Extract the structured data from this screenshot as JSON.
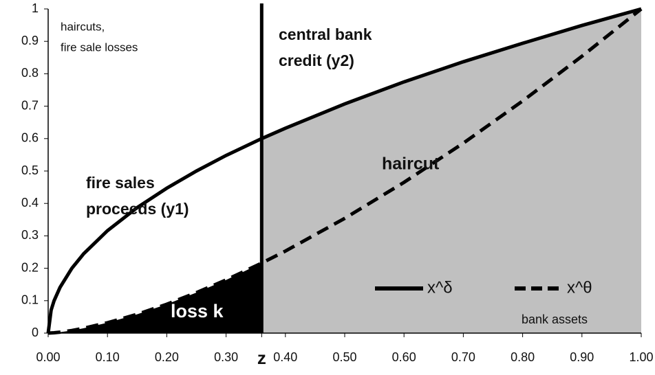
{
  "chart_data": {
    "type": "line",
    "x": [
      0,
      0.005,
      0.01,
      0.02,
      0.04,
      0.06,
      0.1,
      0.15,
      0.2,
      0.25,
      0.3,
      0.36,
      0.4,
      0.5,
      0.6,
      0.7,
      0.8,
      0.9,
      1.0
    ],
    "series": [
      {
        "name": "x^δ",
        "color": "#000000",
        "dash": false,
        "values": [
          0,
          0.071,
          0.1,
          0.141,
          0.2,
          0.245,
          0.316,
          0.387,
          0.447,
          0.5,
          0.548,
          0.6,
          0.632,
          0.707,
          0.775,
          0.837,
          0.894,
          0.949,
          1
        ]
      },
      {
        "name": "x^θ",
        "color": "#000000",
        "dash": true,
        "values": [
          0,
          0,
          0.001,
          0.003,
          0.008,
          0.015,
          0.032,
          0.058,
          0.089,
          0.125,
          0.164,
          0.216,
          0.253,
          0.354,
          0.465,
          0.586,
          0.716,
          0.854,
          1
        ]
      }
    ],
    "xlim": [
      0,
      1
    ],
    "ylim": [
      0,
      1
    ],
    "xticks": [
      {
        "value": 0,
        "label": "0.00"
      },
      {
        "value": 0.1,
        "label": "0.10"
      },
      {
        "value": 0.2,
        "label": "0.20"
      },
      {
        "value": 0.3,
        "label": "0.30"
      },
      {
        "value": 0.36,
        "label": "z"
      },
      {
        "value": 0.4,
        "label": "0.40"
      },
      {
        "value": 0.5,
        "label": "0.50"
      },
      {
        "value": 0.6,
        "label": "0.60"
      },
      {
        "value": 0.7,
        "label": "0.70"
      },
      {
        "value": 0.8,
        "label": "0.80"
      },
      {
        "value": 0.9,
        "label": "0.90"
      },
      {
        "value": 1,
        "label": "1.00"
      }
    ],
    "yticks": [
      0,
      0.1,
      0.2,
      0.3,
      0.4,
      0.5,
      0.6,
      0.7,
      0.8,
      0.9,
      1
    ],
    "area_colors": {
      "haircut": "#c0c0c0",
      "loss": "#000000"
    },
    "annotations": [
      {
        "text": [
          "haircuts,",
          "fire sale losses"
        ]
      },
      {
        "text": [
          "central bank",
          "credit (y2)"
        ]
      },
      {
        "text": [
          "haircut"
        ]
      },
      {
        "text": [
          "fire sales",
          "proceeds (y1)"
        ]
      },
      {
        "text": [
          "loss k"
        ]
      },
      {
        "text": [
          "bank assets"
        ]
      }
    ],
    "legend": "lower right",
    "grid": false
  }
}
